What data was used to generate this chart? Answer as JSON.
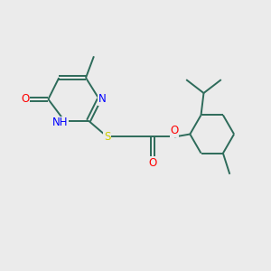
{
  "background_color": "#ebebeb",
  "bond_color": "#2d6b5a",
  "n_color": "#0000ff",
  "o_color": "#ff0000",
  "s_color": "#cccc00",
  "figsize": [
    3.0,
    3.0
  ],
  "dpi": 100,
  "xlim": [
    0,
    10
  ],
  "ylim": [
    0,
    10
  ]
}
